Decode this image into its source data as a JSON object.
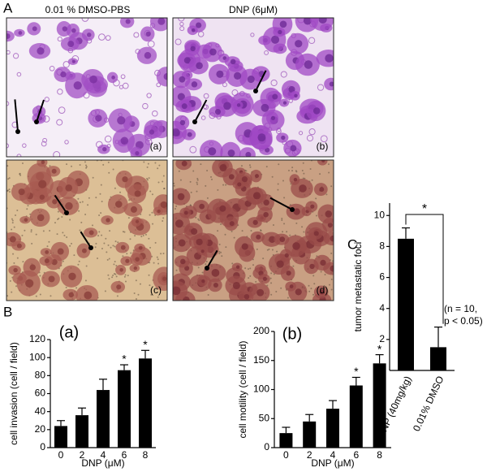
{
  "panels": {
    "A": "A",
    "B": "B",
    "C": "C",
    "images": [
      {
        "header": "0.01 % DMSO-PBS",
        "label": "(a)"
      },
      {
        "header": "DNP (6μM)",
        "label": "(b)"
      },
      {
        "label": "(c)"
      },
      {
        "label": "(d)"
      }
    ]
  },
  "chart_data": [
    {
      "type": "bar",
      "title": "(a)",
      "ylabel": "cell invasion (cell / field)",
      "xlabel": "DNP (μM)",
      "categories": [
        "0",
        "2",
        "4",
        "6",
        "8"
      ],
      "values": [
        24,
        36,
        64,
        86,
        99
      ],
      "errors": [
        6,
        8,
        12,
        6,
        9
      ],
      "significance": [
        null,
        null,
        null,
        "*",
        "*"
      ],
      "color": "#000000",
      "ylim": [
        0,
        120
      ],
      "yticks": [
        0,
        20,
        40,
        60,
        80,
        100,
        120
      ]
    },
    {
      "type": "bar",
      "title": "(b)",
      "ylabel": "cell motility (cell / field)",
      "xlabel": "DNP (μM)",
      "categories": [
        "0",
        "2",
        "4",
        "6",
        "8"
      ],
      "values": [
        25,
        45,
        67,
        107,
        145
      ],
      "errors": [
        10,
        12,
        14,
        14,
        15
      ],
      "significance": [
        null,
        null,
        null,
        "*",
        "*"
      ],
      "color": "#000000",
      "ylim": [
        0,
        200
      ],
      "yticks": [
        0,
        50,
        100,
        150,
        200
      ]
    },
    {
      "type": "bar",
      "ylabel": "tumor metastatic foci",
      "categories": [
        "DNP (40mg/kg)",
        "0.01% DMSO"
      ],
      "values": [
        8.5,
        1.5
      ],
      "errors": [
        0.7,
        1.3
      ],
      "bracket_label": "*",
      "note_lines": [
        "(n = 10,",
        "p < 0.05)"
      ],
      "color": "#000000",
      "ylim": [
        0,
        10.8
      ],
      "yticks": [
        2,
        4,
        6,
        8,
        10
      ]
    }
  ]
}
